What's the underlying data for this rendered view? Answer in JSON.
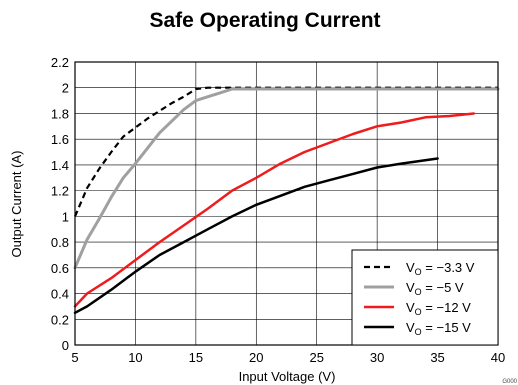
{
  "chart_data": {
    "type": "line",
    "title": "Safe Operating Current",
    "xlabel": "Input Voltage (V)",
    "ylabel": "Output Current (A)",
    "xlim": [
      5,
      40
    ],
    "ylim": [
      0,
      2.2
    ],
    "x_ticks": [
      "5",
      "10",
      "15",
      "20",
      "25",
      "30",
      "35",
      "40"
    ],
    "y_ticks": [
      "0",
      "0.2",
      "0.4",
      "0.6",
      "0.8",
      "1",
      "1.2",
      "1.4",
      "1.6",
      "1.8",
      "2",
      "2.2"
    ],
    "grid": true,
    "legend_position": "bottom-right",
    "figure_code": "G000",
    "series": [
      {
        "name": "V_O = −3.3 V",
        "name_main": "V",
        "name_sub": "O",
        "name_rest": " = −3.3 V",
        "color": "#000000",
        "dash": true,
        "width": 2.2,
        "x": [
          5,
          6,
          7,
          8,
          9,
          10,
          11,
          12,
          13,
          14,
          15,
          16,
          17,
          18,
          20,
          25,
          30,
          35,
          40
        ],
        "y": [
          1.0,
          1.22,
          1.37,
          1.5,
          1.62,
          1.69,
          1.76,
          1.82,
          1.88,
          1.93,
          1.99,
          2.0,
          2.0,
          2.0,
          2.0,
          2.0,
          2.0,
          2.0,
          2.0
        ]
      },
      {
        "name": "V_O = −5 V",
        "name_main": "V",
        "name_sub": "O",
        "name_rest": " = −5 V",
        "color": "#a0a0a0",
        "dash": false,
        "width": 3,
        "x": [
          5,
          6,
          7,
          8,
          9,
          10,
          11,
          12,
          13,
          14,
          15,
          16,
          17,
          18,
          20,
          25,
          30,
          35,
          40
        ],
        "y": [
          0.6,
          0.82,
          0.98,
          1.15,
          1.3,
          1.41,
          1.53,
          1.65,
          1.74,
          1.83,
          1.9,
          1.93,
          1.96,
          1.99,
          1.99,
          1.99,
          1.99,
          1.99,
          1.99
        ]
      },
      {
        "name": "V_O = −12 V",
        "name_main": "V",
        "name_sub": "O",
        "name_rest": " = −12 V",
        "color": "#ee1c1c",
        "dash": false,
        "width": 2.5,
        "x": [
          5,
          6,
          8,
          10,
          12,
          14,
          16,
          18,
          20,
          22,
          24,
          26,
          28,
          30,
          32,
          34,
          36,
          38
        ],
        "y": [
          0.3,
          0.4,
          0.52,
          0.66,
          0.8,
          0.93,
          1.06,
          1.2,
          1.3,
          1.41,
          1.5,
          1.57,
          1.64,
          1.7,
          1.73,
          1.77,
          1.78,
          1.8
        ]
      },
      {
        "name": "V_O = −15 V",
        "name_main": "V",
        "name_sub": "O",
        "name_rest": " = −15 V",
        "color": "#000000",
        "dash": false,
        "width": 2.5,
        "x": [
          5,
          6,
          8,
          10,
          12,
          14,
          16,
          18,
          20,
          22,
          24,
          26,
          28,
          30,
          32,
          35
        ],
        "y": [
          0.25,
          0.3,
          0.43,
          0.57,
          0.7,
          0.8,
          0.9,
          1.0,
          1.09,
          1.16,
          1.23,
          1.28,
          1.33,
          1.38,
          1.41,
          1.45
        ]
      }
    ]
  }
}
